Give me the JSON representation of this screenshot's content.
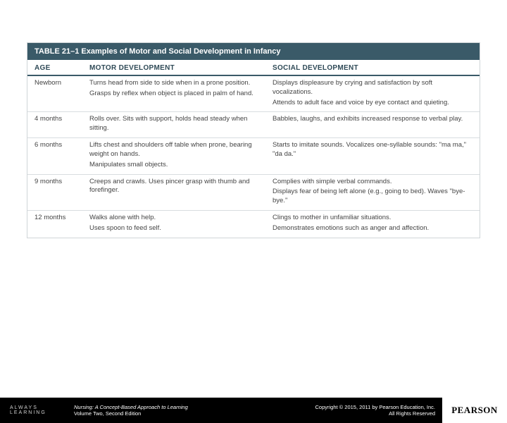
{
  "table": {
    "title": "TABLE 21–1  Examples of Motor and Social Development in Infancy",
    "header_bg": "#3a5a68",
    "header_fg": "#ffffff",
    "colheader_fg": "#2f4a57",
    "border_color": "#d0d5d8",
    "columns": {
      "age": "AGE",
      "motor": "MOTOR DEVELOPMENT",
      "social": "SOCIAL DEVELOPMENT"
    },
    "rows": [
      {
        "age": "Newborn",
        "motor": [
          "Turns head from side to side when in a prone position.",
          "Grasps by reflex when object is placed in palm of hand."
        ],
        "social": [
          "Displays displeasure by crying and satisfaction by soft vocalizations.",
          "Attends to adult face and voice by eye contact and quieting."
        ]
      },
      {
        "age": "4 months",
        "motor": [
          "Rolls over. Sits with support, holds head steady when sitting."
        ],
        "social": [
          "Babbles, laughs, and exhibits increased response to verbal play."
        ]
      },
      {
        "age": "6 months",
        "motor": [
          "Lifts chest and shoulders off table when prone, bearing weight on hands.",
          "Manipulates small objects."
        ],
        "social": [
          "Starts to imitate sounds. Vocalizes one-syllable sounds: \"ma ma,\" \"da da.\""
        ]
      },
      {
        "age": "9 months",
        "motor": [
          "Creeps and crawls. Uses pincer grasp with thumb and forefinger."
        ],
        "social": [
          "Complies with simple verbal commands.",
          "Displays fear of being left alone (e.g., going to bed). Waves \"bye-bye.\""
        ]
      },
      {
        "age": "12 months",
        "motor": [
          "Walks alone with help.",
          "Uses spoon to feed self."
        ],
        "social": [
          "Clings to mother in unfamiliar situations.",
          "Demonstrates emotions such as anger and affection."
        ]
      }
    ]
  },
  "footer": {
    "always_learning": "ALWAYS LEARNING",
    "book_title": "Nursing: A Concept-Based Approach to Learning",
    "book_edition": "Volume Two, Second Edition",
    "copyright_line1": "Copyright © 2015, 2011 by Pearson Education, Inc.",
    "copyright_line2": "All Rights Reserved",
    "logo": "PEARSON",
    "bg": "#000000",
    "fg": "#ffffff"
  }
}
